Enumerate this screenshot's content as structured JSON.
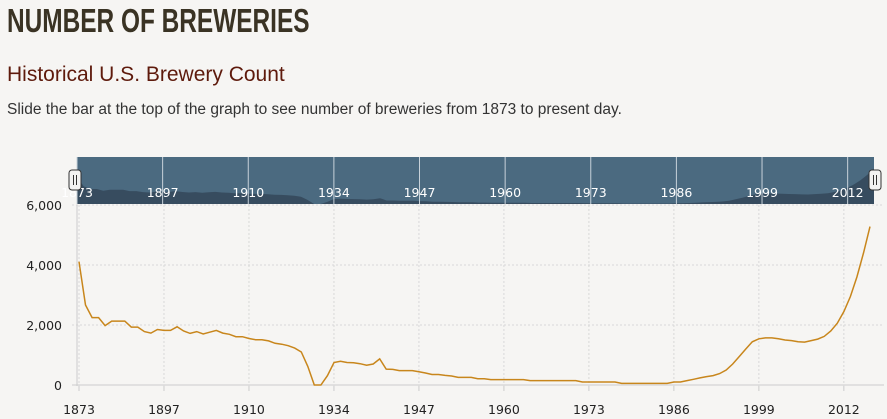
{
  "header": {
    "title": "NUMBER OF BREWERIES",
    "subtitle": "Historical U.S. Brewery Count",
    "description": "Slide the bar at the top of the graph to see number of breweries from 1873 to present day."
  },
  "colors": {
    "line": "#c8861c",
    "navigator_bg": "#4b6a80",
    "navigator_area": "#374c5f",
    "title": "#3a3324",
    "subtitle": "#5e1a0c"
  },
  "chart_data": {
    "type": "line",
    "title": "Historical U.S. Brewery Count",
    "xlabel": "",
    "ylabel": "",
    "ylim": [
      0,
      6000
    ],
    "y_ticks": [
      "0",
      "2,000",
      "4,000",
      "6,000"
    ],
    "y_tick_values": [
      0,
      2000,
      4000,
      6000
    ],
    "x_ticks": [
      "1873",
      "1897",
      "1910",
      "1934",
      "1947",
      "1960",
      "1973",
      "1986",
      "1999",
      "2012"
    ],
    "x_tick_index": [
      0,
      13,
      26,
      39,
      52,
      65,
      78,
      91,
      104,
      117
    ],
    "grid": true,
    "series": [
      {
        "name": "Breweries",
        "values": [
          4110,
          2667,
          2245,
          2245,
          1980,
          2130,
          2130,
          2130,
          1930,
          1930,
          1780,
          1730,
          1850,
          1820,
          1820,
          1940,
          1800,
          1720,
          1780,
          1700,
          1760,
          1820,
          1730,
          1690,
          1610,
          1610,
          1550,
          1510,
          1510,
          1470,
          1390,
          1360,
          1310,
          1230,
          1100,
          620,
          0,
          0,
          310,
          750,
          790,
          750,
          740,
          710,
          660,
          700,
          870,
          530,
          520,
          480,
          480,
          480,
          440,
          400,
          350,
          350,
          320,
          300,
          255,
          255,
          255,
          210,
          210,
          180,
          180,
          180,
          180,
          180,
          180,
          145,
          145,
          145,
          145,
          145,
          145,
          145,
          145,
          100,
          100,
          100,
          100,
          100,
          100,
          55,
          55,
          55,
          55,
          55,
          55,
          55,
          55,
          100,
          100,
          145,
          190,
          235,
          280,
          315,
          380,
          500,
          700,
          950,
          1200,
          1440,
          1540,
          1570,
          1570,
          1540,
          1500,
          1480,
          1440,
          1430,
          1480,
          1530,
          1620,
          1800,
          2060,
          2450,
          2950,
          3600,
          4400,
          5280
        ]
      }
    ]
  }
}
